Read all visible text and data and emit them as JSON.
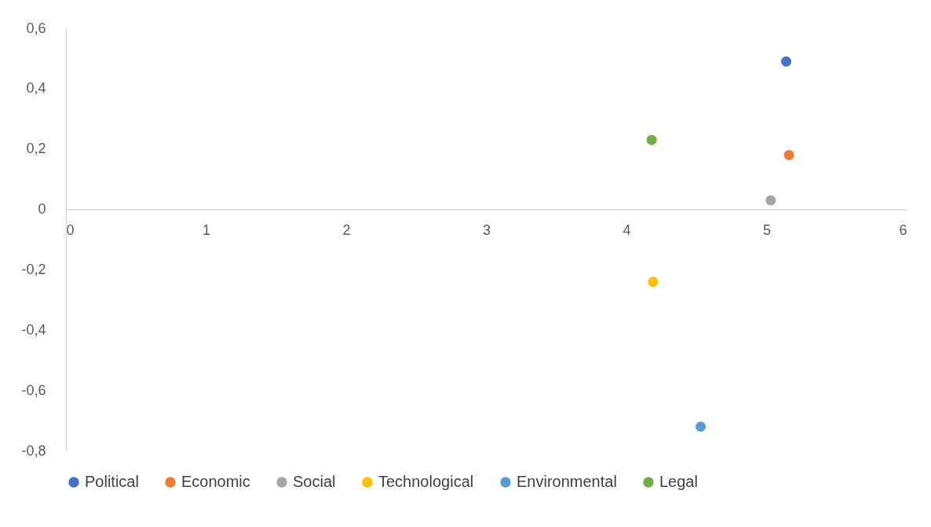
{
  "chart_data": {
    "type": "scatter",
    "marker": "circle",
    "legend": "bottom",
    "grid": false,
    "xlim": [
      0,
      6
    ],
    "xticks": [
      0,
      1,
      2,
      3,
      4,
      5,
      6
    ],
    "ylim": [
      -0.8,
      0.6
    ],
    "yticks": [
      {
        "value": -0.8,
        "label": "-0,8"
      },
      {
        "value": -0.6,
        "label": "-0,6"
      },
      {
        "value": -0.4,
        "label": "-0,4"
      },
      {
        "value": -0.2,
        "label": "-0,2"
      },
      0,
      {
        "value": 0.2,
        "label": "0,2"
      },
      {
        "value": 0.4,
        "label": "0,4"
      },
      {
        "value": 0.6,
        "label": "0,6"
      }
    ],
    "series": [
      {
        "name": "Political",
        "color": "#4472c4",
        "x": [
          5.14
        ],
        "values": [
          0.49
        ]
      },
      {
        "name": "Economic",
        "color": "#ed7d31",
        "x": [
          5.16
        ],
        "values": [
          0.18
        ]
      },
      {
        "name": "Social",
        "color": "#a5a5a5",
        "x": [
          5.03
        ],
        "values": [
          0.03
        ]
      },
      {
        "name": "Technological",
        "color": "#ffc000",
        "x": [
          4.19
        ],
        "values": [
          -0.24
        ]
      },
      {
        "name": "Environmental",
        "color": "#5b9bd5",
        "x": [
          4.53
        ],
        "values": [
          -0.72
        ]
      },
      {
        "name": "Legal",
        "color": "#70ad47",
        "x": [
          4.18
        ],
        "values": [
          0.23
        ]
      }
    ]
  }
}
